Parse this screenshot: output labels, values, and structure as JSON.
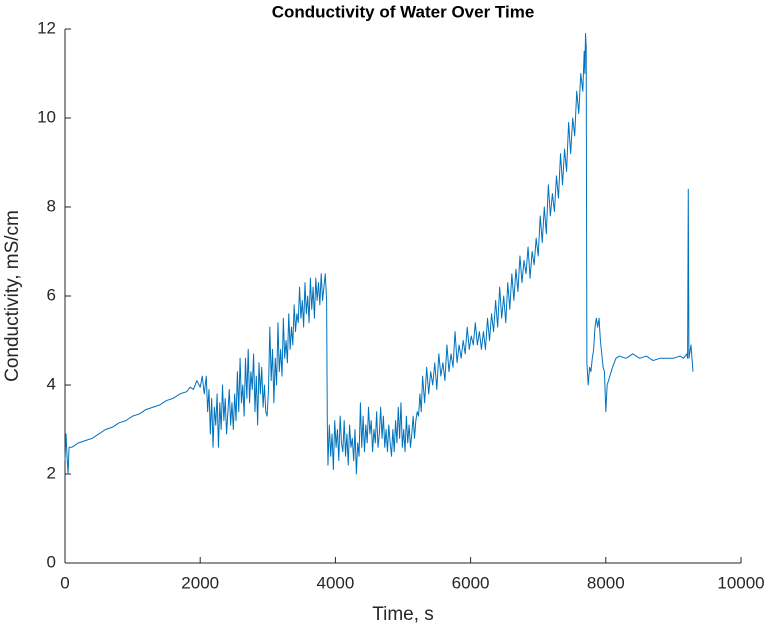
{
  "chart_data": {
    "type": "line",
    "title": "Conductivity of Water Over Time",
    "x_label": "Time, s",
    "y_label": "Conductivity, mS/cm",
    "color": "#0072bd",
    "xlim": [
      0,
      10000
    ],
    "xticks": [
      0,
      2000,
      4000,
      6000,
      8000,
      10000
    ],
    "ylim": [
      0,
      12
    ],
    "yticks": [
      0,
      2,
      4,
      6,
      8,
      10,
      12
    ],
    "x": [
      0,
      15,
      30,
      45,
      60,
      100,
      200,
      300,
      400,
      500,
      600,
      700,
      800,
      900,
      1000,
      1100,
      1200,
      1300,
      1400,
      1500,
      1600,
      1700,
      1800,
      1850,
      1900,
      1950,
      2000,
      2030,
      2060,
      2090,
      2110,
      2130,
      2150,
      2170,
      2190,
      2210,
      2230,
      2250,
      2270,
      2290,
      2310,
      2330,
      2350,
      2370,
      2390,
      2410,
      2430,
      2450,
      2470,
      2490,
      2510,
      2530,
      2550,
      2570,
      2590,
      2610,
      2630,
      2650,
      2670,
      2690,
      2710,
      2730,
      2750,
      2770,
      2790,
      2810,
      2830,
      2850,
      2870,
      2890,
      2910,
      2930,
      2950,
      2970,
      2990,
      3010,
      3030,
      3050,
      3070,
      3090,
      3110,
      3130,
      3150,
      3170,
      3190,
      3210,
      3230,
      3250,
      3270,
      3290,
      3310,
      3330,
      3350,
      3370,
      3390,
      3410,
      3430,
      3450,
      3470,
      3490,
      3510,
      3530,
      3550,
      3570,
      3590,
      3610,
      3630,
      3650,
      3670,
      3690,
      3710,
      3730,
      3750,
      3770,
      3790,
      3810,
      3830,
      3850,
      3870,
      3880,
      3890,
      3910,
      3930,
      3950,
      3970,
      3990,
      4010,
      4030,
      4050,
      4070,
      4090,
      4110,
      4130,
      4150,
      4170,
      4190,
      4210,
      4230,
      4250,
      4270,
      4290,
      4310,
      4330,
      4350,
      4370,
      4390,
      4410,
      4430,
      4450,
      4470,
      4490,
      4510,
      4530,
      4550,
      4570,
      4590,
      4610,
      4630,
      4650,
      4670,
      4690,
      4710,
      4730,
      4750,
      4770,
      4790,
      4810,
      4830,
      4850,
      4870,
      4890,
      4910,
      4930,
      4950,
      4970,
      4990,
      5010,
      5030,
      5050,
      5070,
      5090,
      5110,
      5130,
      5150,
      5170,
      5190,
      5210,
      5230,
      5250,
      5270,
      5290,
      5320,
      5350,
      5380,
      5410,
      5440,
      5470,
      5500,
      5530,
      5560,
      5590,
      5620,
      5650,
      5680,
      5710,
      5740,
      5770,
      5800,
      5830,
      5860,
      5890,
      5920,
      5950,
      5980,
      6010,
      6040,
      6070,
      6100,
      6130,
      6160,
      6190,
      6220,
      6250,
      6280,
      6310,
      6340,
      6370,
      6400,
      6430,
      6460,
      6490,
      6520,
      6550,
      6580,
      6610,
      6640,
      6670,
      6700,
      6730,
      6760,
      6790,
      6820,
      6850,
      6880,
      6910,
      6940,
      6970,
      7000,
      7030,
      7060,
      7090,
      7120,
      7150,
      7180,
      7210,
      7240,
      7270,
      7300,
      7330,
      7360,
      7390,
      7420,
      7450,
      7480,
      7510,
      7540,
      7570,
      7600,
      7630,
      7660,
      7680,
      7690,
      7700,
      7710,
      7720,
      7740,
      7760,
      7780,
      7800,
      7820,
      7840,
      7860,
      7880,
      7900,
      7920,
      7940,
      7960,
      7980,
      8000,
      8020,
      8060,
      8100,
      8150,
      8200,
      8300,
      8400,
      8500,
      8600,
      8700,
      8800,
      8900,
      9000,
      9100,
      9150,
      9200,
      9210,
      9220,
      9230,
      9260,
      9290
    ],
    "values": [
      2.3,
      2.9,
      2.4,
      2.0,
      2.6,
      2.6,
      2.7,
      2.75,
      2.8,
      2.9,
      3.0,
      3.05,
      3.15,
      3.2,
      3.3,
      3.35,
      3.45,
      3.5,
      3.55,
      3.65,
      3.7,
      3.8,
      3.85,
      3.95,
      3.9,
      4.1,
      3.95,
      4.2,
      3.8,
      4.2,
      3.4,
      3.9,
      2.9,
      3.7,
      2.6,
      3.5,
      3.1,
      3.8,
      2.6,
      3.6,
      3.0,
      4.0,
      3.2,
      3.7,
      2.9,
      3.4,
      3.9,
      3.1,
      3.6,
      3.0,
      3.8,
      3.2,
      4.3,
      3.4,
      4.6,
      3.6,
      4.0,
      3.3,
      4.6,
      3.7,
      4.8,
      3.6,
      4.3,
      3.9,
      4.7,
      3.4,
      4.2,
      3.1,
      4.5,
      3.8,
      4.4,
      3.5,
      4.0,
      3.4,
      3.3,
      3.9,
      5.3,
      4.1,
      4.8,
      3.6,
      4.6,
      4.0,
      5.4,
      4.3,
      4.8,
      4.2,
      5.5,
      4.6,
      5.0,
      4.5,
      5.6,
      4.8,
      5.3,
      4.9,
      5.8,
      5.2,
      5.6,
      5.4,
      6.2,
      5.5,
      5.9,
      5.3,
      6.3,
      5.6,
      6.0,
      5.4,
      6.4,
      5.7,
      6.2,
      5.5,
      6.4,
      5.9,
      6.3,
      5.8,
      6.5,
      5.9,
      6.2,
      6.5,
      5.9,
      3.2,
      2.2,
      3.1,
      2.4,
      2.9,
      2.1,
      3.2,
      2.6,
      3.0,
      2.3,
      3.3,
      2.7,
      2.5,
      3.2,
      2.4,
      2.9,
      2.2,
      3.1,
      2.6,
      2.8,
      2.3,
      3.0,
      2.0,
      2.7,
      2.4,
      3.6,
      2.6,
      3.3,
      2.5,
      3.1,
      2.7,
      3.5,
      2.9,
      3.2,
      2.5,
      3.0,
      2.7,
      3.4,
      2.6,
      2.9,
      3.5,
      2.8,
      3.3,
      2.6,
      3.0,
      2.5,
      3.1,
      2.7,
      2.4,
      3.0,
      2.5,
      3.2,
      2.7,
      3.5,
      2.8,
      3.6,
      2.6,
      3.0,
      2.5,
      3.3,
      2.7,
      3.1,
      2.6,
      2.9,
      3.3,
      2.8,
      3.2,
      3.4,
      3.3,
      3.8,
      3.4,
      4.2,
      3.6,
      4.4,
      3.8,
      4.3,
      4.0,
      4.5,
      3.9,
      4.7,
      4.2,
      4.5,
      4.1,
      4.9,
      4.3,
      4.7,
      4.4,
      5.2,
      4.5,
      4.9,
      4.6,
      5.0,
      4.7,
      5.3,
      4.8,
      5.1,
      4.9,
      5.4,
      4.9,
      5.2,
      4.8,
      5.2,
      4.8,
      5.5,
      5.0,
      5.6,
      5.2,
      5.9,
      5.3,
      6.2,
      5.5,
      6.0,
      5.4,
      6.3,
      5.7,
      6.5,
      5.9,
      6.6,
      6.1,
      6.9,
      6.3,
      6.8,
      6.5,
      7.1,
      6.4,
      7.0,
      6.7,
      7.3,
      6.9,
      7.8,
      7.2,
      8.0,
      7.4,
      8.5,
      7.8,
      8.3,
      7.9,
      8.7,
      8.2,
      9.2,
      8.5,
      9.3,
      8.8,
      9.9,
      9.2,
      10.0,
      9.6,
      10.6,
      10.1,
      11.0,
      10.6,
      11.5,
      11.0,
      11.9,
      11.6,
      4.5,
      4.0,
      4.4,
      4.3,
      4.6,
      4.8,
      5.3,
      5.5,
      5.3,
      5.5,
      5.0,
      4.7,
      4.4,
      4.3,
      3.4,
      4.0,
      4.2,
      4.4,
      4.6,
      4.65,
      4.6,
      4.7,
      4.6,
      4.65,
      4.55,
      4.6,
      4.6,
      4.6,
      4.65,
      4.6,
      4.7,
      4.6,
      8.4,
      4.6,
      4.9,
      4.3
    ]
  }
}
